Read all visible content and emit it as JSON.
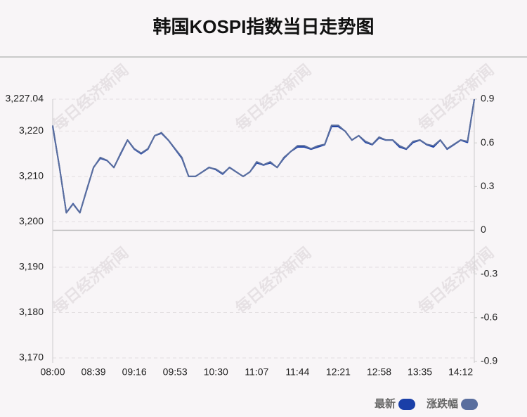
{
  "chart_data": {
    "type": "line",
    "title": "韩国KOSPI指数当日走势图",
    "watermark": "每日经济新闻",
    "categories": [
      "08:00",
      null,
      null,
      null,
      null,
      null,
      "08:39",
      null,
      null,
      null,
      null,
      null,
      "09:16",
      null,
      null,
      null,
      null,
      null,
      "09:53",
      null,
      null,
      null,
      null,
      null,
      "10:30",
      null,
      null,
      null,
      null,
      null,
      "11:07",
      null,
      null,
      null,
      null,
      null,
      "11:44",
      null,
      null,
      null,
      null,
      null,
      "12:21",
      null,
      null,
      null,
      null,
      null,
      "12:58",
      null,
      null,
      null,
      null,
      null,
      "13:35",
      null,
      null,
      null,
      null,
      null,
      "14:12",
      null,
      null
    ],
    "series": [
      {
        "name": "最新",
        "color": "#1a3fa8",
        "values": [
          3221,
          3212,
          3202,
          3204,
          3202,
          3207,
          3212,
          3214,
          3213.5,
          3212,
          3215,
          3218,
          3216,
          3215,
          3216,
          3219,
          3219.5,
          3218,
          3216,
          3214,
          3210,
          3210,
          3211,
          3212,
          3211.5,
          3210.5,
          3212,
          3211,
          3210,
          3211,
          3213,
          3212.5,
          3213,
          3212,
          3214,
          3215.5,
          3216.5,
          3216.5,
          3216,
          3216.5,
          3217,
          3221,
          3221,
          3220,
          3218,
          3219,
          3217.5,
          3217,
          3218.5,
          3218,
          3218,
          3216.5,
          3216,
          3217.5,
          3218,
          3217,
          3216.5,
          3218,
          3216,
          3217,
          3218,
          3217.5,
          3227
        ]
      },
      {
        "name": "涨跌幅",
        "color": "#5a6e9e",
        "axis": "y2",
        "values": [
          0.72,
          0.43,
          0.12,
          0.18,
          0.12,
          0.28,
          0.43,
          0.5,
          0.48,
          0.43,
          0.53,
          0.62,
          0.56,
          0.53,
          0.56,
          0.65,
          0.67,
          0.62,
          0.56,
          0.5,
          0.37,
          0.37,
          0.4,
          0.43,
          0.42,
          0.39,
          0.43,
          0.4,
          0.37,
          0.4,
          0.47,
          0.45,
          0.47,
          0.43,
          0.5,
          0.54,
          0.58,
          0.58,
          0.56,
          0.58,
          0.59,
          0.72,
          0.72,
          0.68,
          0.62,
          0.65,
          0.61,
          0.59,
          0.64,
          0.62,
          0.62,
          0.58,
          0.56,
          0.61,
          0.62,
          0.59,
          0.58,
          0.62,
          0.56,
          0.59,
          0.62,
          0.61,
          0.9
        ]
      }
    ],
    "ylim": [
      3170,
      3227.04
    ],
    "yticks": [
      {
        "value": 3170,
        "label": "3,170"
      },
      {
        "value": 3180,
        "label": "3,180"
      },
      {
        "value": 3190,
        "label": "3,190"
      },
      {
        "value": 3200,
        "label": "3,200"
      },
      {
        "value": 3210,
        "label": "3,210"
      },
      {
        "value": 3220,
        "label": "3,220"
      },
      {
        "value": 3227.04,
        "label": "3,227.04"
      }
    ],
    "y2lim": [
      -0.9,
      0.9
    ],
    "y2ticks": [
      -0.9,
      -0.6,
      -0.3,
      0,
      0.3,
      0.6,
      0.9
    ],
    "grid": true
  }
}
